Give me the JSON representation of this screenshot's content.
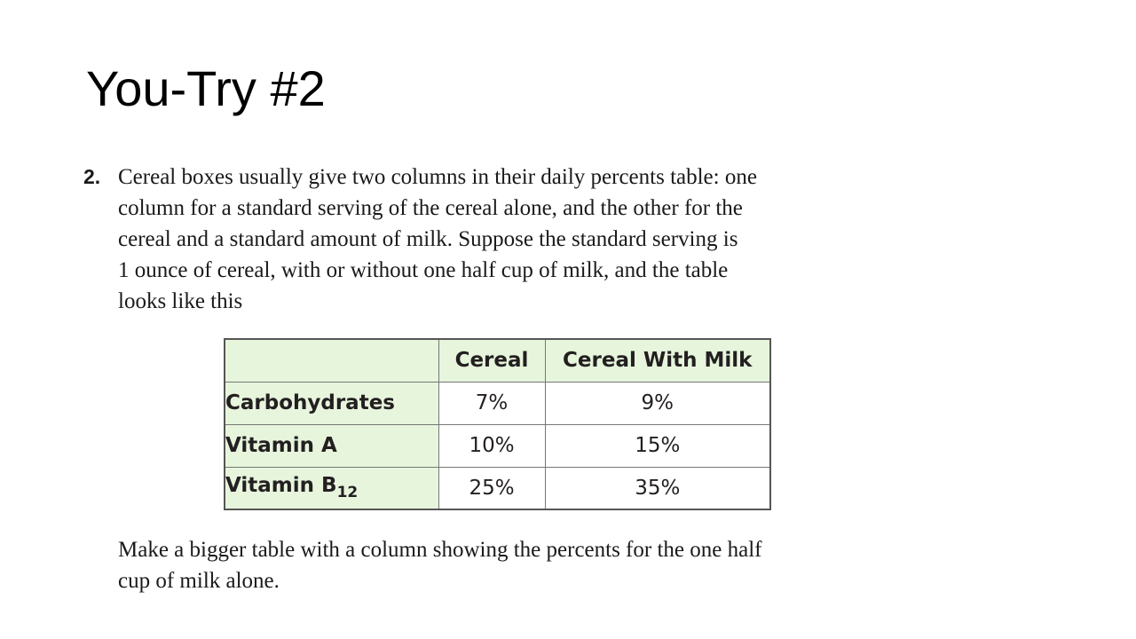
{
  "slide": {
    "title": "You-Try #2"
  },
  "problem": {
    "number": "2.",
    "lines": [
      "Cereal boxes usually give two columns in their daily percents table: one",
      "column for a standard serving of the cereal alone, and the other for the",
      "cereal and a standard amount of milk. Suppose the standard serving is",
      "1 ounce of cereal, with or without one half cup of milk, and the table",
      "looks like this"
    ]
  },
  "table": {
    "headers": [
      "",
      "Cereal",
      "Cereal With Milk"
    ],
    "rows": [
      {
        "label": "Carbohydrates",
        "label_sub": "",
        "cereal": "7%",
        "with_milk": "9%"
      },
      {
        "label": "Vitamin B",
        "label_sub": "12",
        "cereal": "25%",
        "with_milk": "35%"
      },
      {
        "label": "Vitamin A",
        "label_sub": "",
        "cereal": "10%",
        "with_milk": "15%"
      }
    ],
    "colors": {
      "header_bg": "#e6f5dc",
      "border": "#555555"
    }
  },
  "followup": {
    "lines": [
      "Make a bigger table with a column showing the percents for the one half",
      "cup of milk alone."
    ]
  }
}
